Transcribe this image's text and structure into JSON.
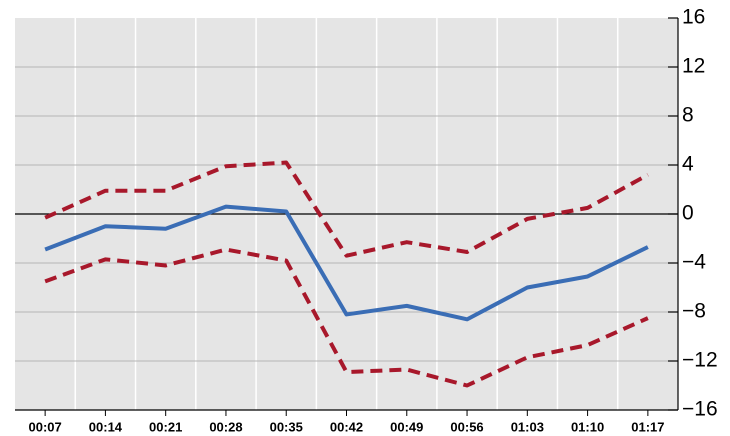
{
  "chart_data": {
    "type": "line",
    "categories": [
      "00:07",
      "00:14",
      "00:21",
      "00:28",
      "00:35",
      "00:42",
      "00:49",
      "00:56",
      "01:03",
      "01:10",
      "01:17"
    ],
    "series": [
      {
        "color": "#3a6db5",
        "dashed": false,
        "values": [
          -2.9,
          -1.0,
          -1.2,
          0.6,
          0.2,
          -8.2,
          -7.5,
          -8.6,
          -6.0,
          -5.1,
          -2.7
        ]
      },
      {
        "color": "#a8182b",
        "dashed": true,
        "values": [
          -0.3,
          1.9,
          1.9,
          3.9,
          4.2,
          -3.4,
          -2.3,
          -3.1,
          -0.4,
          0.5,
          3.2
        ]
      },
      {
        "color": "#a8182b",
        "dashed": true,
        "values": [
          -5.5,
          -3.7,
          -4.2,
          -2.9,
          -3.8,
          -12.9,
          -12.7,
          -14.0,
          -11.7,
          -10.7,
          -8.5
        ]
      }
    ],
    "ylim": [
      -16,
      16
    ],
    "yticks": [
      {
        "value": -16,
        "label": "−16"
      },
      {
        "value": -12,
        "label": "−12"
      },
      {
        "value": -8,
        "label": "−8"
      },
      {
        "value": -4,
        "label": "−4"
      },
      0,
      4,
      8,
      12,
      16
    ],
    "y_axis_side": "right",
    "grid": true
  }
}
